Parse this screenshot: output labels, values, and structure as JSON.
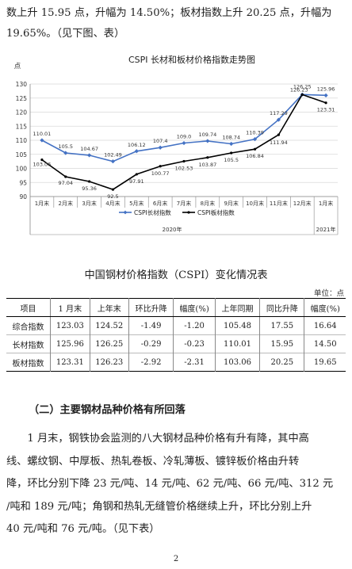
{
  "intro": {
    "line1": "数上升 15.95 点，升幅为 14.50%；板材指数上升 20.25 点，升幅为",
    "line2": "19.65%。（见下图、表）"
  },
  "chart_data": {
    "type": "line",
    "title": "CSPI 长材和板材价格指数走势图",
    "ylabel": "点",
    "ylim": [
      90,
      130
    ],
    "yticks": [
      90,
      95,
      100,
      105,
      110,
      115,
      120,
      125,
      130
    ],
    "grid": true,
    "legend_position": "bottom-center",
    "categories": [
      "1月末",
      "2月末",
      "3月末",
      "4月末",
      "5月末",
      "6月末",
      "7月末",
      "8月末",
      "9月末",
      "10月末",
      "11月末",
      "12月末",
      "1月末"
    ],
    "year_groups": [
      {
        "label": "2020年",
        "span": 12
      },
      {
        "label": "2021年",
        "span": 1
      }
    ],
    "series": [
      {
        "name": "CSPI长材指数",
        "color": "#4472C4",
        "marker": "diamond",
        "values": [
          110.01,
          105.5,
          104.67,
          102.49,
          106.12,
          107.4,
          109.0,
          109.74,
          108.74,
          110.39,
          117.29,
          126.25,
          125.96
        ],
        "labels": [
          "110.01",
          "105.5",
          "104.67",
          "102.49",
          "106.12",
          "107.4",
          "109.0",
          "109.74",
          "108.74",
          "110.39",
          "117.29",
          "126.25",
          "125.96"
        ]
      },
      {
        "name": "CSPI板材指数",
        "color": "#000000",
        "marker": "circle",
        "values": [
          103.06,
          97.04,
          95.36,
          92.5,
          97.91,
          100.77,
          102.53,
          103.87,
          105.5,
          106.84,
          111.94,
          126.23,
          123.31
        ],
        "labels": [
          "103.06",
          "97.04",
          "95.36",
          "92.5",
          "97.91",
          "100.77",
          "102.53",
          "103.87",
          "105.5",
          "106.84",
          "111.94",
          "126.23",
          "123.31"
        ]
      }
    ]
  },
  "table": {
    "title": "中国钢材价格指数（CSPI）变化情况表",
    "unit": "单位：点",
    "headers": [
      "项目",
      "1 月末",
      "上年末",
      "环比升降",
      "幅度(%)",
      "上年同期",
      "同比升降",
      "幅度(%)"
    ],
    "rows": [
      [
        "综合指数",
        "123.03",
        "124.52",
        "-1.49",
        "-1.20",
        "105.48",
        "17.55",
        "16.64"
      ],
      [
        "长材指数",
        "125.96",
        "126.25",
        "-0.29",
        "-0.23",
        "110.01",
        "15.95",
        "14.50"
      ],
      [
        "板材指数",
        "123.31",
        "126.23",
        "-2.92",
        "-2.31",
        "103.06",
        "20.25",
        "19.65"
      ]
    ]
  },
  "section": {
    "heading": "（二）主要钢材品种价格有所回落"
  },
  "body": {
    "line1": "　　1 月末，钢铁协会监测的八大钢材品种价格有升有降，其中高",
    "line2": "线、螺纹钢、中厚板、热轧卷板、冷轧薄板、镀锌板价格由升转",
    "line3": "降，环比分别下降 23 元/吨、14 元/吨、62 元/吨、66 元/吨、312 元",
    "line4": "/吨和 189 元/吨；角钢和热轧无缝管价格继续上升，环比分别上升",
    "line5": "40 元/吨和 76 元/吨。（见下表）"
  },
  "page": {
    "number": "2"
  }
}
